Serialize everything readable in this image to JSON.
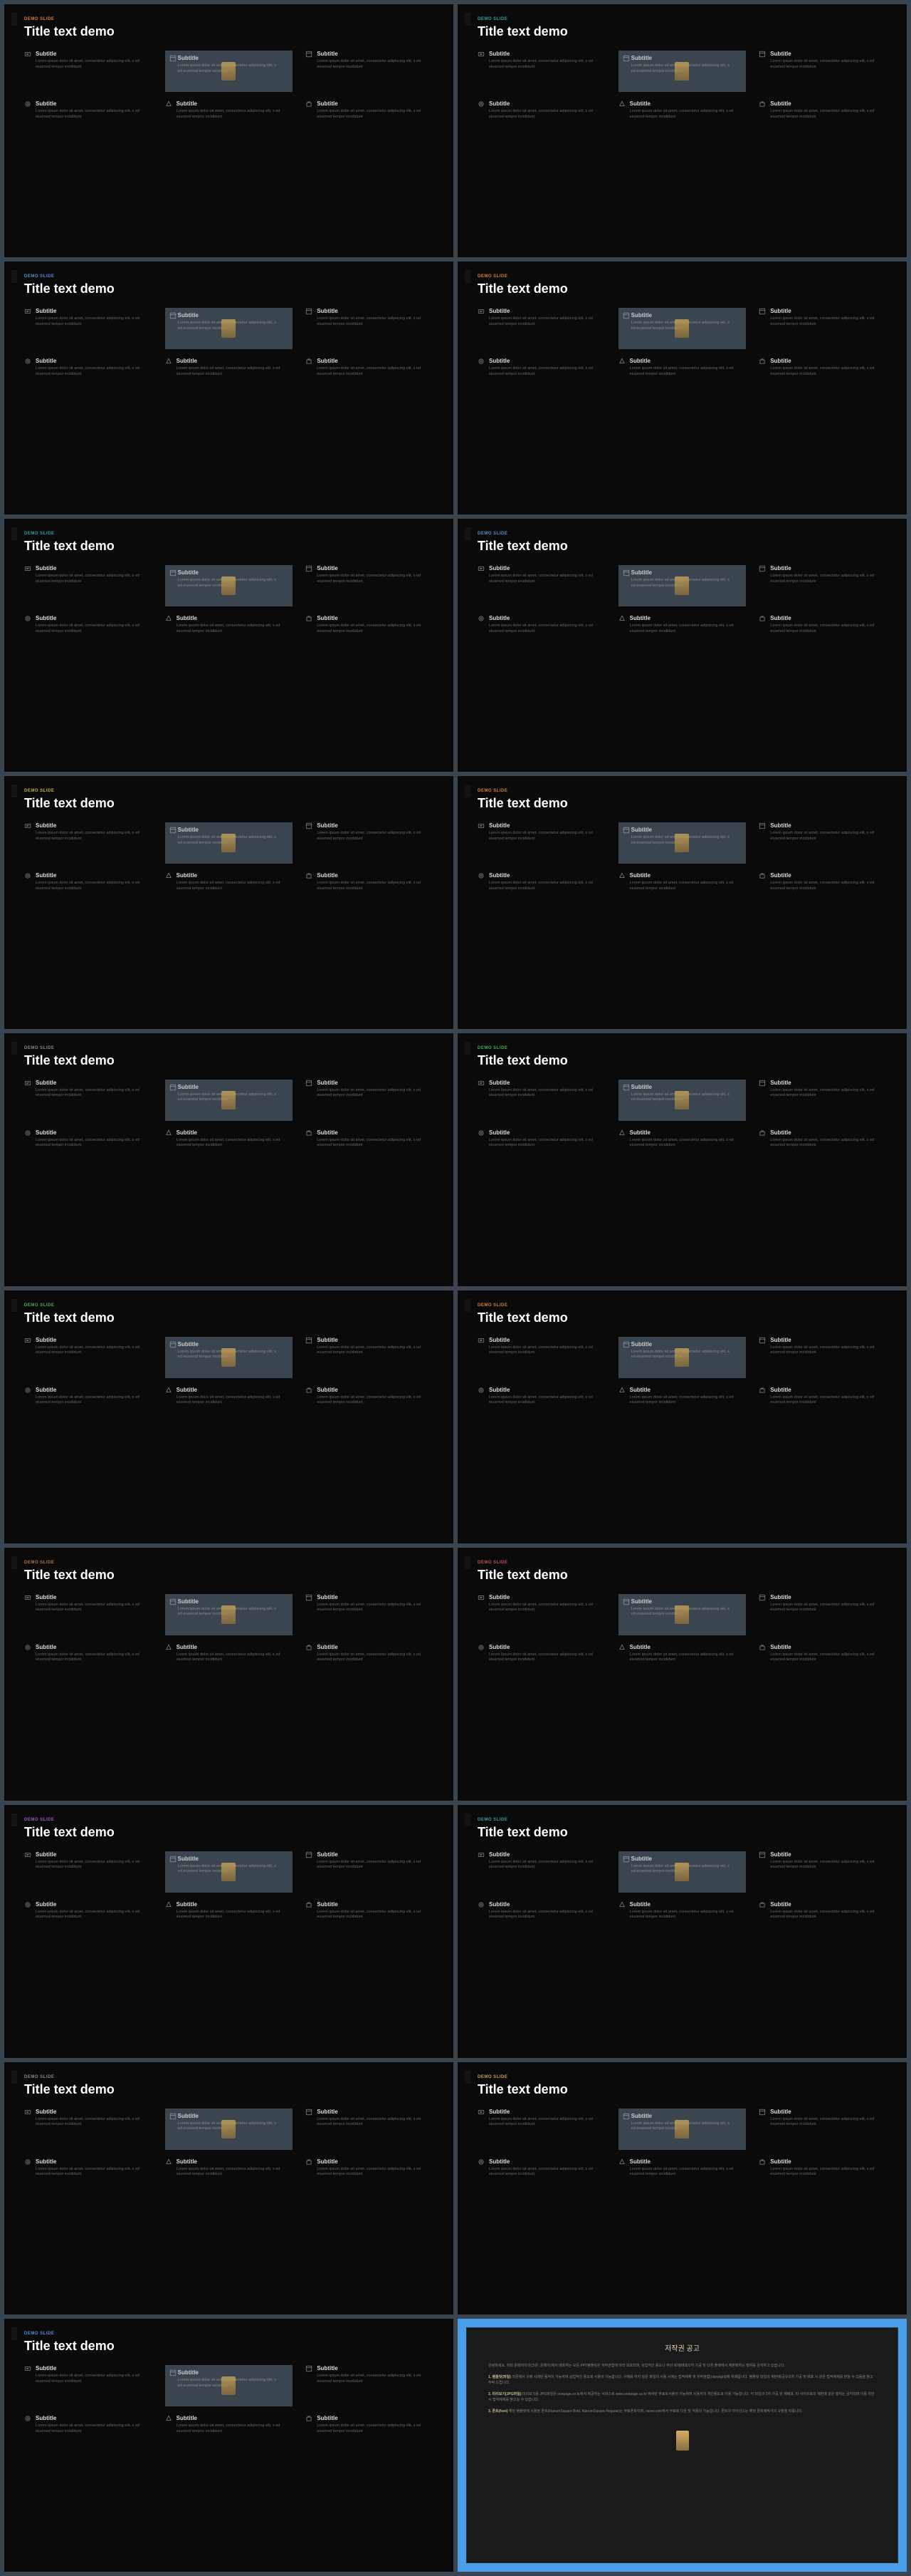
{
  "eyebrow": "DEMO SLIDE",
  "title": "Title text demo",
  "subtitle": "Subtitle",
  "body": "Lorem ipsum dolor sit amet, consectetur adipiscing elit, s ed eiusmod tempor incididunt",
  "slides": [
    {
      "accent": "accent-orange"
    },
    {
      "accent": "accent-teal"
    },
    {
      "accent": "accent-blue"
    },
    {
      "accent": "accent-orange"
    },
    {
      "accent": "accent-teal"
    },
    {
      "accent": "accent-blue"
    },
    {
      "accent": "accent-yellow"
    },
    {
      "accent": "accent-orange"
    },
    {
      "accent": "accent-gray"
    },
    {
      "accent": "accent-green"
    },
    {
      "accent": "accent-green"
    },
    {
      "accent": "accent-orange"
    },
    {
      "accent": "accent-brown"
    },
    {
      "accent": "accent-red"
    },
    {
      "accent": "accent-violet"
    },
    {
      "accent": "accent-teal"
    },
    {
      "accent": "accent-gray"
    },
    {
      "accent": "accent-gold"
    },
    {
      "accent": "accent-blue"
    }
  ],
  "copyright": {
    "title": "저작권 공고",
    "p1": "안녕하세요. 저희 온페이지넷(크몬: 온페이)에서 배포하는 모든 PPT템플릿은 저작권법에 따라 보호되며, 상업적인 용도나 무단 복제/배포/2차 가공 및 다른 플랫에서 재판매하는 행위를 금지하고 있습니다.",
    "p2_strong": "1. 템플릿(파일)",
    "p2": " 크몬에서 구매 시에만 동작이 가능하며 상업적인 용도로 사용이 가능합니다. 구매를 하지 않은 파일의 사용 시에는 법적제재 및 저작권법(copyright)에 위배됩니다. 템플릿 파일의 재판매/공유/2차 가공 및 배포 시 같은 법적제재를 받을 수 있음을 참고 부탁 드립니다.",
    "p3_strong": "2. 미리보기(JPG파일)",
    "p3": " 미리보기용 JPG파일은 onepage.co.kr에서 제공하는 서비스로 www.onepage.co.kr 에서만 무료로사용이 가능하며 사용자의 개인용도로 이용 가능합니다. 각 파일의 2차 가공 및 재배포, 타 사이트로의 재판매 같은 행위는 금지되며 이를 위반 시 법적제재를 받으실 수 있습니다.",
    "p4_strong": "3. 폰트(font)",
    "p4": " 해당 템플릿에 사용된 폰트(NanumSquare Bold, NanumSquare Regular)는 무료폰트이며, naver.com에서 무료로 다운 및 적용이 가능합니다. 폰트의 라이선스는 해당 폰트제작사의 규정을 따릅니다."
  },
  "colors": {
    "bg": "#3a4550",
    "slide_bg": "#0a0a0a",
    "image_cell_bg": "#3a4550",
    "copyright_bg": "#4a9de8",
    "title_color": "#ffffff",
    "body_color": "#666666"
  }
}
